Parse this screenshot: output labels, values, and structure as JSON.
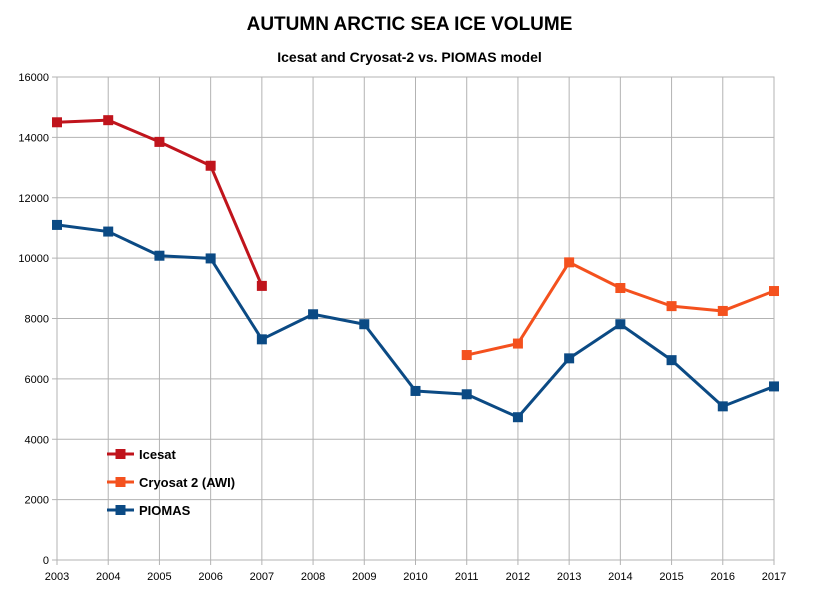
{
  "chart_data": {
    "type": "line",
    "title": "AUTUMN ARCTIC SEA ICE VOLUME",
    "subtitle": "Icesat and Cryosat-2 vs. PIOMAS model",
    "xlabel": "",
    "ylabel": "",
    "categories": [
      "2003",
      "2004",
      "2005",
      "2006",
      "2007",
      "2008",
      "2009",
      "2010",
      "2011",
      "2012",
      "2013",
      "2014",
      "2015",
      "2016",
      "2017"
    ],
    "ylim": [
      0,
      16000
    ],
    "yticks": [
      "0",
      "2000",
      "4000",
      "6000",
      "8000",
      "10000",
      "12000",
      "14000",
      "16000"
    ],
    "grid": true,
    "legend_position": "bottom-left",
    "series": [
      {
        "name": "Icesat",
        "color": "#c0141c",
        "values": [
          14500,
          14570,
          13850,
          13060,
          9080,
          null,
          null,
          null,
          null,
          null,
          null,
          null,
          null,
          null,
          null
        ]
      },
      {
        "name": "Cryosat 2 (AWI)",
        "color": "#f4511e",
        "values": [
          null,
          null,
          null,
          null,
          null,
          null,
          null,
          null,
          6790,
          7170,
          9860,
          9010,
          8410,
          8250,
          8910
        ]
      },
      {
        "name": "PIOMAS",
        "color": "#0b4a84",
        "values": [
          11100,
          10880,
          10080,
          9990,
          7310,
          8140,
          7810,
          5600,
          5490,
          4730,
          6680,
          7810,
          6620,
          5090,
          5750
        ]
      }
    ]
  }
}
